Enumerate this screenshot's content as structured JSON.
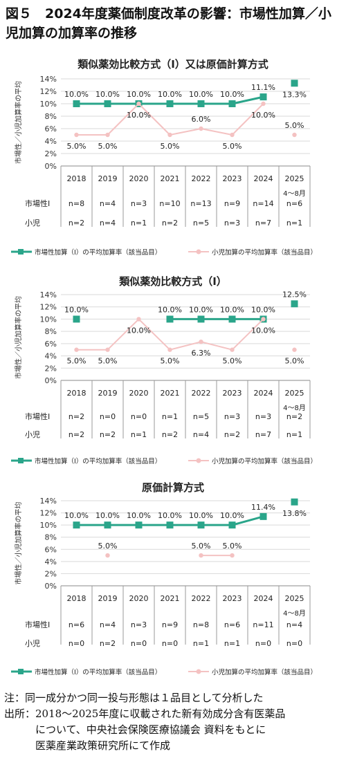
{
  "figure_title": "図５　2024年度薬価制度改革の影響：市場性加算／小児加算の加算率の推移",
  "notes": [
    "注：同一成分かつ同一投与形態は１品目として分析した",
    "出所：2018～2025年度に収載された新有効成分含有医薬品",
    "　　　について、中央社会保険医療協議会 資料をもとに",
    "　　　医薬産業政策研究所にて作成"
  ],
  "colors": {
    "market": "#2aa58a",
    "pediatric": "#f4c2c2",
    "grid": "#d9d9d9",
    "table": "#999999"
  },
  "chart_data": [
    {
      "type": "line",
      "title": "類似薬効比較方式（Ⅰ）又は原価計算方式",
      "ylabel": "市場性／小児加算率の平均",
      "ylim": [
        0,
        14
      ],
      "yticks": [
        "0%",
        "2%",
        "4%",
        "6%",
        "8%",
        "10%",
        "12%",
        "14%"
      ],
      "categories": [
        "2018",
        "2019",
        "2020",
        "2021",
        "2022",
        "2023",
        "2024",
        "2025"
      ],
      "category_sub": [
        "",
        "",
        "",
        "",
        "",
        "",
        "",
        "4～8月"
      ],
      "series": [
        {
          "name": "市場性加算（Ⅰ）の平均加算率（該当品目）",
          "values": [
            10.0,
            10.0,
            10.0,
            10.0,
            10.0,
            10.0,
            11.1,
            13.3
          ],
          "labels": [
            "10.0%",
            "10.0%",
            "10.0%",
            "10.0%",
            "10.0%",
            "10.0%",
            "11.1%",
            "13.3%"
          ]
        },
        {
          "name": "小児加算の平均加算率（該当品目）",
          "values": [
            5.0,
            5.0,
            10.0,
            5.0,
            6.0,
            5.0,
            10.0,
            5.0
          ],
          "labels": [
            "5.0%",
            "5.0%",
            "10.0%",
            "5.0%",
            "6.0%",
            "5.0%",
            "10.0%",
            "5.0%"
          ]
        }
      ],
      "table_rows": [
        {
          "label": "市場性Ⅰ",
          "values": [
            "n=8",
            "n=4",
            "n=3",
            "n=10",
            "n=13",
            "n=9",
            "n=14",
            "n=6"
          ]
        },
        {
          "label": "小児",
          "values": [
            "n=2",
            "n=4",
            "n=1",
            "n=2",
            "n=5",
            "n=3",
            "n=7",
            "n=1"
          ]
        }
      ]
    },
    {
      "type": "line",
      "title": "類似薬効比較方式（Ⅰ）",
      "ylabel": "市場性／小児加算率の平均",
      "ylim": [
        0,
        14
      ],
      "yticks": [
        "0%",
        "2%",
        "4%",
        "6%",
        "8%",
        "10%",
        "12%",
        "14%"
      ],
      "categories": [
        "2018",
        "2019",
        "2020",
        "2021",
        "2022",
        "2023",
        "2024",
        "2025"
      ],
      "category_sub": [
        "",
        "",
        "",
        "",
        "",
        "",
        "",
        "4～8月"
      ],
      "series": [
        {
          "name": "市場性加算（Ⅰ）の平均加算率（該当品目）",
          "values": [
            10.0,
            null,
            null,
            10.0,
            10.0,
            10.0,
            10.0,
            12.5
          ],
          "labels": [
            "10.0%",
            "",
            "",
            "10.0%",
            "10.0%",
            "10.0%",
            "10.0%",
            "12.5%"
          ]
        },
        {
          "name": "小児加算の平均加算率（該当品目）",
          "values": [
            5.0,
            5.0,
            10.0,
            5.0,
            6.3,
            5.0,
            10.0,
            5.0
          ],
          "labels": [
            "5.0%",
            "5.0%",
            "10.0%",
            "5.0%",
            "6.3%",
            "5.0%",
            "10.0%",
            "5.0%"
          ]
        }
      ],
      "table_rows": [
        {
          "label": "市場性Ⅰ",
          "values": [
            "n=2",
            "n=0",
            "n=0",
            "n=1",
            "n=5",
            "n=3",
            "n=3",
            "n=2"
          ]
        },
        {
          "label": "小児",
          "values": [
            "n=2",
            "n=2",
            "n=1",
            "n=2",
            "n=4",
            "n=2",
            "n=7",
            "n=1"
          ]
        }
      ]
    },
    {
      "type": "line",
      "title": "原価計算方式",
      "ylabel": "市場性／小児加算率の平均",
      "ylim": [
        0,
        14
      ],
      "yticks": [
        "0%",
        "2%",
        "4%",
        "6%",
        "8%",
        "10%",
        "12%",
        "14%"
      ],
      "categories": [
        "2018",
        "2019",
        "2020",
        "2021",
        "2022",
        "2023",
        "2024",
        "2025"
      ],
      "category_sub": [
        "",
        "",
        "",
        "",
        "",
        "",
        "",
        "4～8月"
      ],
      "series": [
        {
          "name": "市場性加算（Ⅰ）の平均加算率（該当品目）",
          "values": [
            10.0,
            10.0,
            10.0,
            10.0,
            10.0,
            10.0,
            11.4,
            13.8
          ],
          "labels": [
            "10.0%",
            "10.0%",
            "10.0%",
            "10.0%",
            "10.0%",
            "10.0%",
            "11.4%",
            "13.8%"
          ]
        },
        {
          "name": "小児加算の平均加算率（該当品目）",
          "values": [
            null,
            5.0,
            null,
            null,
            5.0,
            5.0,
            null,
            null
          ],
          "labels": [
            "",
            "5.0%",
            "",
            "",
            "5.0%",
            "5.0%",
            "",
            ""
          ]
        }
      ],
      "table_rows": [
        {
          "label": "市場性Ⅰ",
          "values": [
            "n=6",
            "n=4",
            "n=3",
            "n=9",
            "n=8",
            "n=6",
            "n=11",
            "n=4"
          ]
        },
        {
          "label": "小児",
          "values": [
            "n=0",
            "n=2",
            "n=0",
            "n=0",
            "n=1",
            "n=1",
            "n=0",
            "n=0"
          ]
        }
      ]
    }
  ]
}
